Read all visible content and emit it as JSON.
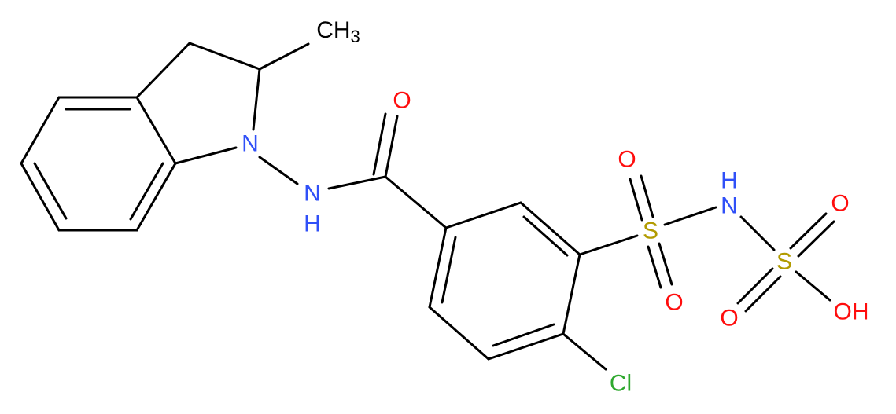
{
  "atoms": [
    {
      "label": "CH",
      "sub": "3"
    },
    {
      "label": "N"
    },
    {
      "label": "N"
    },
    {
      "label": "H"
    },
    {
      "label": "O"
    },
    {
      "label": "O"
    },
    {
      "label": "S"
    },
    {
      "label": "O"
    },
    {
      "label": "H"
    },
    {
      "label": "N"
    },
    {
      "label": "O"
    },
    {
      "label": "S"
    },
    {
      "label": "O"
    },
    {
      "label": "OH"
    },
    {
      "label": "Cl"
    }
  ]
}
